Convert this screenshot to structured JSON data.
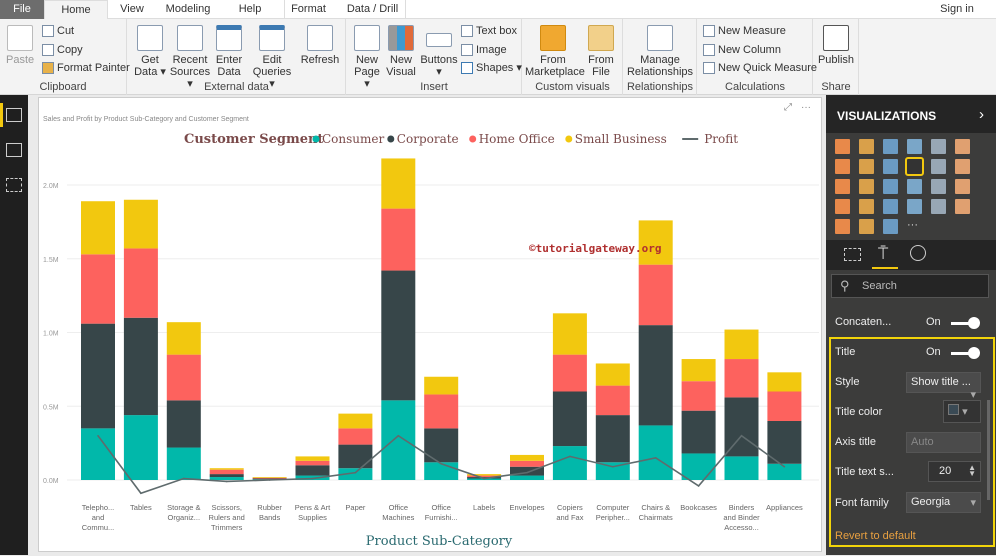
{
  "menu": {
    "tabs": [
      "File",
      "Home",
      "View",
      "Modeling",
      "Help",
      "Format",
      "Data / Drill"
    ],
    "sign_in": "Sign in"
  },
  "ribbon": {
    "clipboard": {
      "label": "Clipboard",
      "paste": "Paste",
      "cut": "Cut",
      "copy": "Copy",
      "format_painter": "Format Painter"
    },
    "external": {
      "label": "External data",
      "get_data": "Get Data",
      "recent_sources": "Recent Sources",
      "enter_data": "Enter Data",
      "edit_queries": "Edit Queries",
      "refresh": "Refresh"
    },
    "insert": {
      "label": "Insert",
      "new_page": "New Page",
      "new_visual": "New Visual",
      "buttons": "Buttons",
      "text_box": "Text box",
      "image": "Image",
      "shapes": "Shapes"
    },
    "custom": {
      "label": "Custom visuals",
      "from_marketplace": "From Marketplace",
      "from_file": "From File"
    },
    "relationships": {
      "label": "Relationships",
      "manage": "Manage Relationships"
    },
    "calculations": {
      "label": "Calculations",
      "new_measure": "New Measure",
      "new_column": "New Column",
      "new_quick_measure": "New Quick Measure"
    },
    "share": {
      "label": "Share",
      "publish": "Publish"
    }
  },
  "panel": {
    "title": "VISUALIZATIONS",
    "search_placeholder": "Search",
    "concatenate": {
      "label": "Concaten...",
      "value": "On"
    },
    "title_section": {
      "label": "Title",
      "value": "On"
    },
    "style": {
      "label": "Style",
      "value": "Show title ..."
    },
    "title_color": {
      "label": "Title color",
      "value": "#3a4a55"
    },
    "axis_title": {
      "label": "Axis title",
      "placeholder": "Auto"
    },
    "title_text_size": {
      "label": "Title text s...",
      "value": "20"
    },
    "font_family": {
      "label": "Font family",
      "value": "Georgia"
    },
    "revert": "Revert to default"
  },
  "watermark": "©tutorialgateway.org",
  "chart_data": {
    "type": "bar",
    "stacked": true,
    "title": "Sales and Profit by Product Sub-Category and Customer Segment",
    "legend_title": "Customer Segment",
    "legend_position": "top-center",
    "xlabel": "Product Sub-Category",
    "ylabel": "",
    "ylim": [
      0,
      2200000
    ],
    "yticks": [
      "0.0M",
      "0.5M",
      "1.0M",
      "1.5M",
      "2.0M"
    ],
    "grid": true,
    "categories": [
      "Telepho... and Commu...",
      "Tables",
      "Storage & Organiz...",
      "Scissors, Rulers and Trimmers",
      "Rubber Bands",
      "Pens & Art Supplies",
      "Paper",
      "Office Machines",
      "Office Furnishi...",
      "Labels",
      "Envelopes",
      "Copiers and Fax",
      "Computer Peripher...",
      "Chairs & Chairmats",
      "Bookcases",
      "Binders and Binder Accesso...",
      "Appliances"
    ],
    "series": [
      {
        "name": "Consumer",
        "color": "#01b8aa",
        "values": [
          350000,
          440000,
          220000,
          20000,
          5000,
          30000,
          80000,
          540000,
          120000,
          10000,
          30000,
          230000,
          120000,
          370000,
          180000,
          160000,
          110000
        ]
      },
      {
        "name": "Corporate",
        "color": "#374649",
        "values": [
          710000,
          660000,
          320000,
          20000,
          5000,
          70000,
          160000,
          880000,
          230000,
          10000,
          60000,
          370000,
          320000,
          680000,
          290000,
          400000,
          290000
        ]
      },
      {
        "name": "Home Office",
        "color": "#fd625e",
        "values": [
          470000,
          470000,
          310000,
          30000,
          5000,
          30000,
          110000,
          420000,
          230000,
          10000,
          40000,
          250000,
          200000,
          410000,
          200000,
          260000,
          200000
        ]
      },
      {
        "name": "Small Business",
        "color": "#f2c80f",
        "values": [
          360000,
          330000,
          220000,
          10000,
          5000,
          30000,
          100000,
          340000,
          120000,
          10000,
          40000,
          280000,
          150000,
          300000,
          150000,
          200000,
          130000
        ]
      }
    ],
    "line": {
      "name": "Profit",
      "color": "#5f6b6d",
      "values": [
        300000,
        -90000,
        10000,
        -10000,
        0,
        10000,
        50000,
        300000,
        110000,
        10000,
        50000,
        160000,
        90000,
        150000,
        -40000,
        300000,
        90000
      ]
    }
  }
}
